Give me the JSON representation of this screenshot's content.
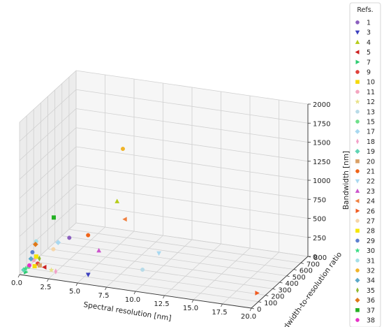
{
  "chart_data": {
    "type": "scatter",
    "projection": "3d",
    "xlabel": "Spectral resolution [nm]",
    "ylabel": "Bandwidth-to-resolution ratio",
    "zlabel": "Bandwidth [nm]",
    "xlim": [
      0,
      20
    ],
    "ylim": [
      0,
      800
    ],
    "zlim": [
      0,
      2000
    ],
    "xticks": [
      "0.0",
      "2.5",
      "5.0",
      "7.5",
      "10.0",
      "12.5",
      "15.0",
      "17.5",
      "20.0"
    ],
    "yticks": [
      "0",
      "100",
      "200",
      "300",
      "400",
      "500",
      "600",
      "700",
      "800"
    ],
    "zticks": [
      "0",
      "250",
      "500",
      "750",
      "1000",
      "1250",
      "1500",
      "1750",
      "2000"
    ],
    "grid": true,
    "legend": {
      "title": "Refs.",
      "placement": "outside-right"
    },
    "series": [
      {
        "name": "1",
        "color": "#8b5fbf",
        "marker": "circle",
        "values": [
          [
            3.5,
            130,
            450
          ]
        ]
      },
      {
        "name": "3",
        "color": "#3b3fbf",
        "marker": "triangle-down",
        "values": [
          [
            5.8,
            20,
            110
          ]
        ]
      },
      {
        "name": "4",
        "color": "#b5cc18",
        "marker": "triangle-up",
        "values": [
          [
            7.5,
            150,
            1000
          ]
        ]
      },
      {
        "name": "5",
        "color": "#cc1f1f",
        "marker": "triangle-left",
        "values": [
          [
            2.0,
            25,
            120
          ]
        ]
      },
      {
        "name": "7",
        "color": "#2ecc71",
        "marker": "triangle-right",
        "values": [
          [
            0.5,
            5,
            40
          ]
        ]
      },
      {
        "name": "9",
        "color": "#e0403a",
        "marker": "circle",
        "values": [
          [
            1.2,
            60,
            120
          ]
        ]
      },
      {
        "name": "10",
        "color": "#f5d90a",
        "marker": "square",
        "values": [
          [
            1.0,
            50,
            90
          ]
        ]
      },
      {
        "name": "11",
        "color": "#f4a6c0",
        "marker": "circle",
        "values": [
          [
            0.8,
            70,
            150
          ]
        ]
      },
      {
        "name": "12",
        "color": "#e8e28a",
        "marker": "star",
        "values": [
          [
            2.5,
            40,
            80
          ]
        ]
      },
      {
        "name": "13",
        "color": "#b8dbe8",
        "marker": "circle",
        "values": [
          [
            10.0,
            100,
            200
          ]
        ]
      },
      {
        "name": "15",
        "color": "#6ee08a",
        "marker": "circle",
        "values": [
          [
            0.6,
            30,
            90
          ]
        ]
      },
      {
        "name": "17",
        "color": "#a8d8f0",
        "marker": "diamond",
        "values": [
          [
            1.5,
            300,
            200
          ]
        ]
      },
      {
        "name": "18",
        "color": "#f2a0c8",
        "marker": "thin-diamond",
        "values": [
          [
            3.0,
            20,
            90
          ]
        ]
      },
      {
        "name": "19",
        "color": "#5fd4b4",
        "marker": "diamond",
        "values": [
          [
            0.3,
            10,
            60
          ]
        ]
      },
      {
        "name": "20",
        "color": "#d9a066",
        "marker": "square",
        "values": [
          [
            1.5,
            40,
            120
          ]
        ]
      },
      {
        "name": "21",
        "color": "#f06418",
        "marker": "circle",
        "values": [
          [
            5.0,
            150,
            500
          ]
        ]
      },
      {
        "name": "22",
        "color": "#a8d8f0",
        "marker": "triangle-down",
        "values": [
          [
            10.5,
            250,
            300
          ]
        ]
      },
      {
        "name": "23",
        "color": "#cc55cc",
        "marker": "triangle-up",
        "values": [
          [
            5.5,
            220,
            250
          ]
        ]
      },
      {
        "name": "24",
        "color": "#f08040",
        "marker": "triangle-left",
        "values": [
          [
            8.0,
            180,
            750
          ]
        ]
      },
      {
        "name": "26",
        "color": "#f05a20",
        "marker": "triangle-right",
        "values": [
          [
            20.0,
            80,
            130
          ]
        ]
      },
      {
        "name": "27",
        "color": "#f6d6a8",
        "marker": "circle",
        "values": [
          [
            2.0,
            150,
            250
          ]
        ]
      },
      {
        "name": "28",
        "color": "#f5e600",
        "marker": "square",
        "values": [
          [
            0.9,
            90,
            180
          ]
        ]
      },
      {
        "name": "29",
        "color": "#5b7fd0",
        "marker": "circle",
        "values": [
          [
            0.5,
            100,
            220
          ]
        ]
      },
      {
        "name": "30",
        "color": "#3ddc84",
        "marker": "star",
        "values": [
          [
            0.4,
            20,
            70
          ]
        ]
      },
      {
        "name": "31",
        "color": "#a4e0e8",
        "marker": "circle",
        "values": [
          [
            0.7,
            120,
            350
          ]
        ]
      },
      {
        "name": "32",
        "color": "#f0b429",
        "marker": "circle",
        "values": [
          [
            8.0,
            150,
            1700
          ]
        ]
      },
      {
        "name": "34",
        "color": "#5aa8c8",
        "marker": "diamond",
        "values": [
          [
            0.5,
            80,
            150
          ]
        ]
      },
      {
        "name": "35",
        "color": "#8fb82e",
        "marker": "thin-diamond",
        "values": [
          [
            0.8,
            150,
            100
          ]
        ]
      },
      {
        "name": "36",
        "color": "#e07818",
        "marker": "diamond",
        "values": [
          [
            0.4,
            160,
            270
          ]
        ]
      },
      {
        "name": "37",
        "color": "#22b022",
        "marker": "square",
        "values": [
          [
            1.0,
            320,
            500
          ]
        ]
      },
      {
        "name": "38",
        "color": "#e830c8",
        "marker": "circle",
        "values": [
          [
            0.6,
            40,
            100
          ]
        ]
      }
    ]
  }
}
